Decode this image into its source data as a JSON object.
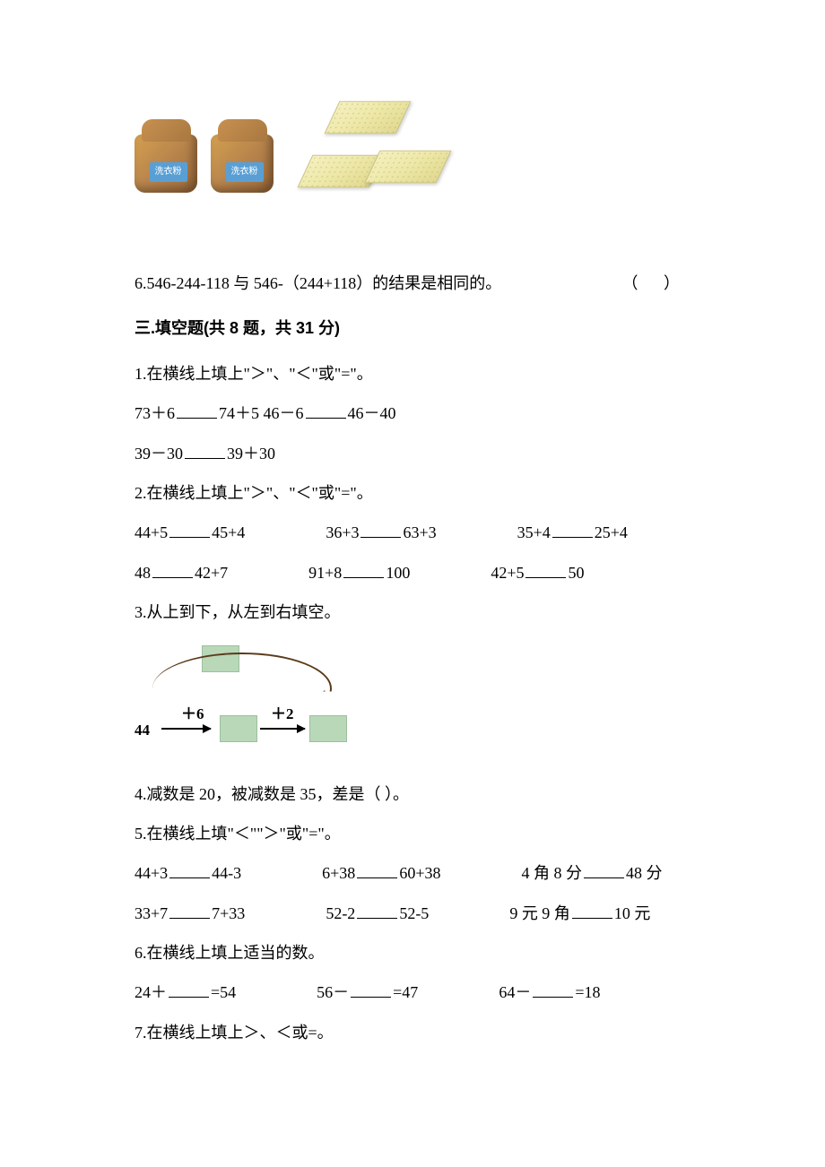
{
  "image_section": {
    "bag_label": "洗衣粉",
    "bag_count": 2,
    "soap_count": 3,
    "bag_colors": {
      "body": "#b8844c",
      "label_bg": "#5a9fd4"
    },
    "soap_color": "#ede8a8"
  },
  "q6": {
    "text": "6.546-244-118 与 546-（244+118）的结果是相同的。",
    "paren": "（   ）"
  },
  "section3": {
    "title": "三.填空题(共 8 题，共 31 分)"
  },
  "fill": {
    "q1": {
      "prompt": "1.在横线上填上\"＞\"、\"＜\"或\"=\"。",
      "line1_a": "73＋6",
      "line1_b": "74＋5  46－6",
      "line1_c": "46－40",
      "line2_a": "39－30",
      "line2_b": "39＋30"
    },
    "q2": {
      "prompt": "2.在横线上填上\"＞\"、\"＜\"或\"=\"。",
      "r1": {
        "a1": "44+5",
        "a2": "45+4",
        "b1": "36+3",
        "b2": "63+3",
        "c1": "35+4",
        "c2": "25+4"
      },
      "r2": {
        "a1": "48",
        "a2": "42+7",
        "b1": "91+8",
        "b2": "100",
        "c1": "42+5",
        "c2": "50"
      }
    },
    "q3": {
      "prompt": "3.从上到下，从左到右填空。",
      "diagram": {
        "start": "44",
        "op1": "＋6",
        "op2": "＋2",
        "box_color": "#b8d8b8",
        "arc_color": "#5a3a1a"
      }
    },
    "q4": "4.减数是 20，被减数是 35，差是（    ）。",
    "q5": {
      "prompt": "5.在横线上填\"＜\"\"＞\"或\"=\"。",
      "r1": {
        "a1": "44+3",
        "a2": "44-3",
        "b1": "6+38",
        "b2": "60+38",
        "c1": "4 角 8 分",
        "c2": "48 分"
      },
      "r2": {
        "a1": "33+7",
        "a2": "7+33",
        "b1": "52-2",
        "b2": "52-5",
        "c1": "9 元 9 角",
        "c2": "10 元"
      }
    },
    "q6": {
      "prompt": "6.在横线上填上适当的数。",
      "r1": {
        "a1": "24＋",
        "a2": "=54",
        "b1": "56－",
        "b2": "=47",
        "c1": "64－",
        "c2": "=18"
      }
    },
    "q7": "7.在横线上填上＞、＜或=。"
  }
}
